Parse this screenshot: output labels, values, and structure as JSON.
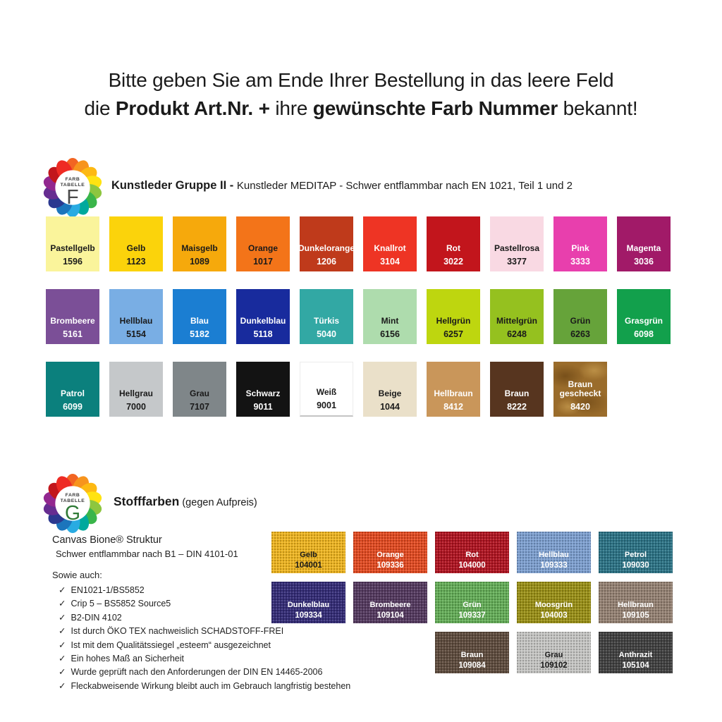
{
  "header": {
    "line1": "Bitte geben Sie am Ende Ihrer Bestellung in das leere Feld",
    "line2_part1": "die ",
    "line2_bold1": "Produkt Art.Nr. +",
    "line2_part2": " ihre ",
    "line2_bold2": "gewünschte Farb Nummer",
    "line2_part3": " bekannt!"
  },
  "logo_petals": [
    "#F26522",
    "#F7941D",
    "#FDB913",
    "#FFE312",
    "#8DC63F",
    "#3AB54A",
    "#00A99D",
    "#29ABE2",
    "#1C75BC",
    "#2B3990",
    "#662D91",
    "#92278F",
    "#C2161C",
    "#EE2B24"
  ],
  "section_f": {
    "logo": {
      "line1": "FARB",
      "line2": "TABELLE",
      "letter": "F",
      "letter_color": "#4a4a4a"
    },
    "title_bold": "Kunstleder Gruppe II - ",
    "title_rest": "Kunstleder MEDITAP - Schwer entflammbar nach EN 1021, Teil 1 und 2",
    "rows": [
      [
        {
          "name": "Pastellgelb",
          "code": "1596",
          "bg": "#FAF49B",
          "fg": "#1a1a1a"
        },
        {
          "name": "Gelb",
          "code": "1123",
          "bg": "#FBD30B",
          "fg": "#1a1a1a"
        },
        {
          "name": "Maisgelb",
          "code": "1089",
          "bg": "#F6A90C",
          "fg": "#1a1a1a"
        },
        {
          "name": "Orange",
          "code": "1017",
          "bg": "#F37419",
          "fg": "#1a1a1a"
        },
        {
          "name": "Dunkelorange",
          "code": "1206",
          "bg": "#BF3A1B",
          "fg": "#ffffff"
        },
        {
          "name": "Knallrot",
          "code": "3104",
          "bg": "#EE3424",
          "fg": "#ffffff"
        },
        {
          "name": "Rot",
          "code": "3022",
          "bg": "#C2151C",
          "fg": "#ffffff"
        },
        {
          "name": "Pastellrosa",
          "code": "3377",
          "bg": "#F9D9E3",
          "fg": "#1a1a1a"
        },
        {
          "name": "Pink",
          "code": "3333",
          "bg": "#E83FAD",
          "fg": "#ffffff"
        },
        {
          "name": "Magenta",
          "code": "3036",
          "bg": "#A11A68",
          "fg": "#ffffff"
        }
      ],
      [
        {
          "name": "Brombeere",
          "code": "5161",
          "bg": "#7B4F97",
          "fg": "#ffffff"
        },
        {
          "name": "Hellblau",
          "code": "5154",
          "bg": "#79AEE4",
          "fg": "#1a1a1a"
        },
        {
          "name": "Blau",
          "code": "5182",
          "bg": "#1B7ED2",
          "fg": "#ffffff"
        },
        {
          "name": "Dunkelblau",
          "code": "5118",
          "bg": "#182B9D",
          "fg": "#ffffff"
        },
        {
          "name": "Türkis",
          "code": "5040",
          "bg": "#32A8A4",
          "fg": "#ffffff"
        },
        {
          "name": "Mint",
          "code": "6156",
          "bg": "#AEDCAD",
          "fg": "#1a1a1a"
        },
        {
          "name": "Hellgrün",
          "code": "6257",
          "bg": "#BED60F",
          "fg": "#1a1a1a"
        },
        {
          "name": "Mittelgrün",
          "code": "6248",
          "bg": "#95C11F",
          "fg": "#1a1a1a"
        },
        {
          "name": "Grün",
          "code": "6263",
          "bg": "#66A33A",
          "fg": "#1a1a1a"
        },
        {
          "name": "Grasgrün",
          "code": "6098",
          "bg": "#12A04C",
          "fg": "#ffffff"
        }
      ],
      [
        {
          "name": "Patrol",
          "code": "6099",
          "bg": "#0B807D",
          "fg": "#ffffff"
        },
        {
          "name": "Hellgrau",
          "code": "7000",
          "bg": "#C5C8CA",
          "fg": "#1a1a1a"
        },
        {
          "name": "Grau",
          "code": "7107",
          "bg": "#7F8689",
          "fg": "#1a1a1a"
        },
        {
          "name": "Schwarz",
          "code": "9011",
          "bg": "#131313",
          "fg": "#ffffff"
        },
        {
          "name": "Weiß",
          "code": "9001",
          "bg": "#FFFFFF",
          "fg": "#1a1a1a",
          "variant": "white"
        },
        {
          "name": "Beige",
          "code": "1044",
          "bg": "#EAE0C9",
          "fg": "#1a1a1a"
        },
        {
          "name": "Hellbraun",
          "code": "8412",
          "bg": "#C9965A",
          "fg": "#ffffff"
        },
        {
          "name": "Braun",
          "code": "8222",
          "bg": "#57351F",
          "fg": "#ffffff"
        },
        {
          "name": "Braun gescheckt",
          "code": "8420",
          "bg": "#9A6C2B",
          "fg": "#ffffff",
          "variant": "mottled"
        }
      ]
    ]
  },
  "section_g": {
    "logo": {
      "line1": "FARB",
      "line2": "TABELLE",
      "letter": "G",
      "letter_color": "#2F7A36"
    },
    "title_bold": "Stofffarben",
    "title_rest": " (gegen Aufpreis)",
    "info": {
      "product": "Canvas Bione® Struktur",
      "subtitle": "Schwer entflammbar nach B1 – DIN 4101-01",
      "also": "Sowie auch:",
      "check_glyph": "✓",
      "checks": [
        "EN1021-1/BS5852",
        "Crip 5 – BS5852 Source5",
        "B2-DIN 4102",
        "Ist durch ÖKO TEX nachweislich SCHADSTOFF-FREI",
        "Ist mit dem Qualitätssiegel „esteem“ ausgezeichnet",
        "Ein hohes Maß an Sicherheit",
        "Wurde geprüft nach den Anforderungen der DIN EN 14465-2006",
        "Fleckabweisende Wirkung bleibt auch im Gebrauch langfristig bestehen"
      ]
    },
    "rows": [
      [
        {
          "name": "Gelb",
          "code": "104001",
          "bg": "#EFB51F",
          "fg": "#1a1a1a"
        },
        {
          "name": "Orange",
          "code": "109336",
          "bg": "#E44A20",
          "fg": "#ffffff"
        },
        {
          "name": "Rot",
          "code": "104000",
          "bg": "#B11320",
          "fg": "#ffffff"
        },
        {
          "name": "Hellblau",
          "code": "109333",
          "bg": "#7DA0D1",
          "fg": "#ffffff"
        },
        {
          "name": "Petrol",
          "code": "109030",
          "bg": "#2B7386",
          "fg": "#ffffff"
        }
      ],
      [
        {
          "name": "Dunkelblau",
          "code": "109334",
          "bg": "#332B77",
          "fg": "#ffffff"
        },
        {
          "name": "Brombeere",
          "code": "109104",
          "bg": "#54395F",
          "fg": "#ffffff"
        },
        {
          "name": "Grün",
          "code": "109337",
          "bg": "#64AE57",
          "fg": "#ffffff"
        },
        {
          "name": "Moosgrün",
          "code": "104003",
          "bg": "#9A9015",
          "fg": "#ffffff"
        },
        {
          "name": "Hellbraun",
          "code": "109105",
          "bg": "#958273",
          "fg": "#ffffff"
        }
      ],
      [
        {
          "name": "Braun",
          "code": "109084",
          "bg": "#5E4B3D",
          "fg": "#ffffff",
          "col": 3
        },
        {
          "name": "Grau",
          "code": "109102",
          "bg": "#C6C6C4",
          "fg": "#1a1a1a",
          "col": 4
        },
        {
          "name": "Anthrazit",
          "code": "105104",
          "bg": "#404040",
          "fg": "#ffffff",
          "col": 5
        }
      ]
    ]
  }
}
